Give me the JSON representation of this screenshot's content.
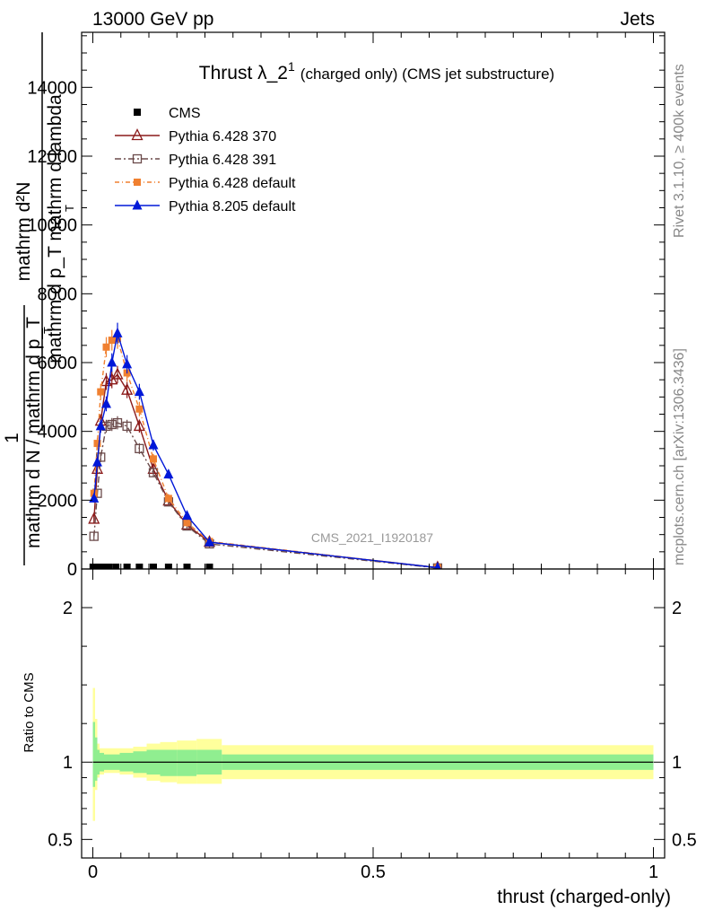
{
  "header": {
    "energy_label": "13000 GeV pp",
    "category_label": "Jets",
    "side_version": "Rivet 3.1.10, ≥ 400k events",
    "side_source": "mcplots.cern.ch [arXiv:1306.3436]"
  },
  "chart_data": [
    {
      "type": "line",
      "title_main": "Thrust λ_2",
      "title_sup": "1",
      "title_sub": "(charged only) (CMS jet substructure)",
      "ylabel_top_lines": [
        "mathrm d²N",
        "mathrm d p_T mathrm d lambda"
      ],
      "ylabel_top_sub": "T",
      "ylabel_bottom_lines": [
        "1",
        "mathrm d N / mathrm d p_T"
      ],
      "ylabel_bottom_sub": "T",
      "ylim": [
        0,
        15600
      ],
      "xlim": [
        -0.02,
        1.02
      ],
      "yticks": [
        0,
        2000,
        4000,
        6000,
        8000,
        10000,
        12000,
        14000
      ],
      "ytick_labels": [
        "0",
        "2000",
        "4000",
        "6000",
        "8000",
        "10000",
        "12000",
        "14000"
      ],
      "analysis_label": "CMS_2021_I1920187",
      "series": [
        {
          "name": "CMS",
          "color": "#000000",
          "style": "data",
          "x": [
            0.0005,
            0.005,
            0.011,
            0.019,
            0.028,
            0.041,
            0.061,
            0.083,
            0.108,
            0.135,
            0.168,
            0.208,
            0.615
          ],
          "y": [
            30,
            30,
            30,
            30,
            30,
            30,
            30,
            30,
            30,
            30,
            30,
            30,
            30
          ]
        },
        {
          "name": "Pythia 6.428 370",
          "color": "#8b1a1a",
          "style": "open-triangle",
          "x": [
            0.002,
            0.008,
            0.014,
            0.024,
            0.034,
            0.044,
            0.061,
            0.083,
            0.108,
            0.135,
            0.168,
            0.208,
            0.615
          ],
          "y": [
            1450,
            2900,
            4300,
            5450,
            5500,
            5650,
            5200,
            4150,
            2900,
            1980,
            1280,
            780,
            40
          ]
        },
        {
          "name": "Pythia 6.428 391",
          "color": "#6b4a4a",
          "style": "open-square",
          "x": [
            0.002,
            0.008,
            0.014,
            0.024,
            0.034,
            0.044,
            0.061,
            0.083,
            0.108,
            0.135,
            0.168,
            0.208,
            0.615
          ],
          "y": [
            950,
            2200,
            3250,
            4150,
            4200,
            4250,
            4150,
            3500,
            2800,
            1950,
            1250,
            730,
            30
          ]
        },
        {
          "name": "Pythia 6.428 default",
          "color": "#f08030",
          "style": "filled-square",
          "x": [
            0.002,
            0.008,
            0.014,
            0.024,
            0.034,
            0.044,
            0.061,
            0.083,
            0.108,
            0.135,
            0.168,
            0.208,
            0.615
          ],
          "y": [
            2200,
            3650,
            5150,
            6450,
            6650,
            6700,
            5700,
            4650,
            3200,
            2050,
            1350,
            800,
            40
          ]
        },
        {
          "name": "Pythia 8.205 default",
          "color": "#0018d8",
          "style": "filled-triangle",
          "x": [
            0.002,
            0.008,
            0.014,
            0.024,
            0.034,
            0.044,
            0.061,
            0.083,
            0.108,
            0.135,
            0.168,
            0.208,
            0.615
          ],
          "y": [
            2050,
            3100,
            4150,
            4800,
            6000,
            6850,
            5950,
            5150,
            3600,
            2750,
            1550,
            780,
            40
          ]
        }
      ]
    },
    {
      "type": "area",
      "ylabel": "Ratio to CMS",
      "ylim": [
        0.38,
        2.25
      ],
      "xlim": [
        -0.02,
        1.02
      ],
      "yticks": [
        0.5,
        1,
        2
      ],
      "ytick_labels": [
        "0.5",
        "1",
        "2"
      ],
      "xticks": [
        0,
        0.5,
        1
      ],
      "xtick_labels": [
        "0",
        "0.5",
        "1"
      ],
      "xlabel": "thrust (charged-only)",
      "bin_edges": [
        0.0,
        0.004,
        0.008,
        0.012,
        0.02,
        0.032,
        0.048,
        0.072,
        0.096,
        0.12,
        0.15,
        0.185,
        0.23,
        1.0
      ],
      "band_stat_low": [
        0.84,
        0.88,
        0.92,
        0.94,
        0.95,
        0.95,
        0.94,
        0.93,
        0.92,
        0.91,
        0.91,
        0.92,
        0.95
      ],
      "band_stat_high": [
        1.26,
        1.16,
        1.08,
        1.06,
        1.05,
        1.05,
        1.06,
        1.07,
        1.08,
        1.08,
        1.08,
        1.08,
        1.05
      ],
      "band_total_low": [
        0.62,
        0.82,
        0.9,
        0.92,
        0.93,
        0.93,
        0.92,
        0.9,
        0.88,
        0.87,
        0.86,
        0.86,
        0.89
      ],
      "band_total_high": [
        1.48,
        1.28,
        1.12,
        1.09,
        1.09,
        1.09,
        1.09,
        1.1,
        1.12,
        1.13,
        1.14,
        1.15,
        1.11
      ],
      "reference_line": 1,
      "band_colors": {
        "total": "#ffff9c",
        "stat": "#90ee90"
      }
    }
  ]
}
